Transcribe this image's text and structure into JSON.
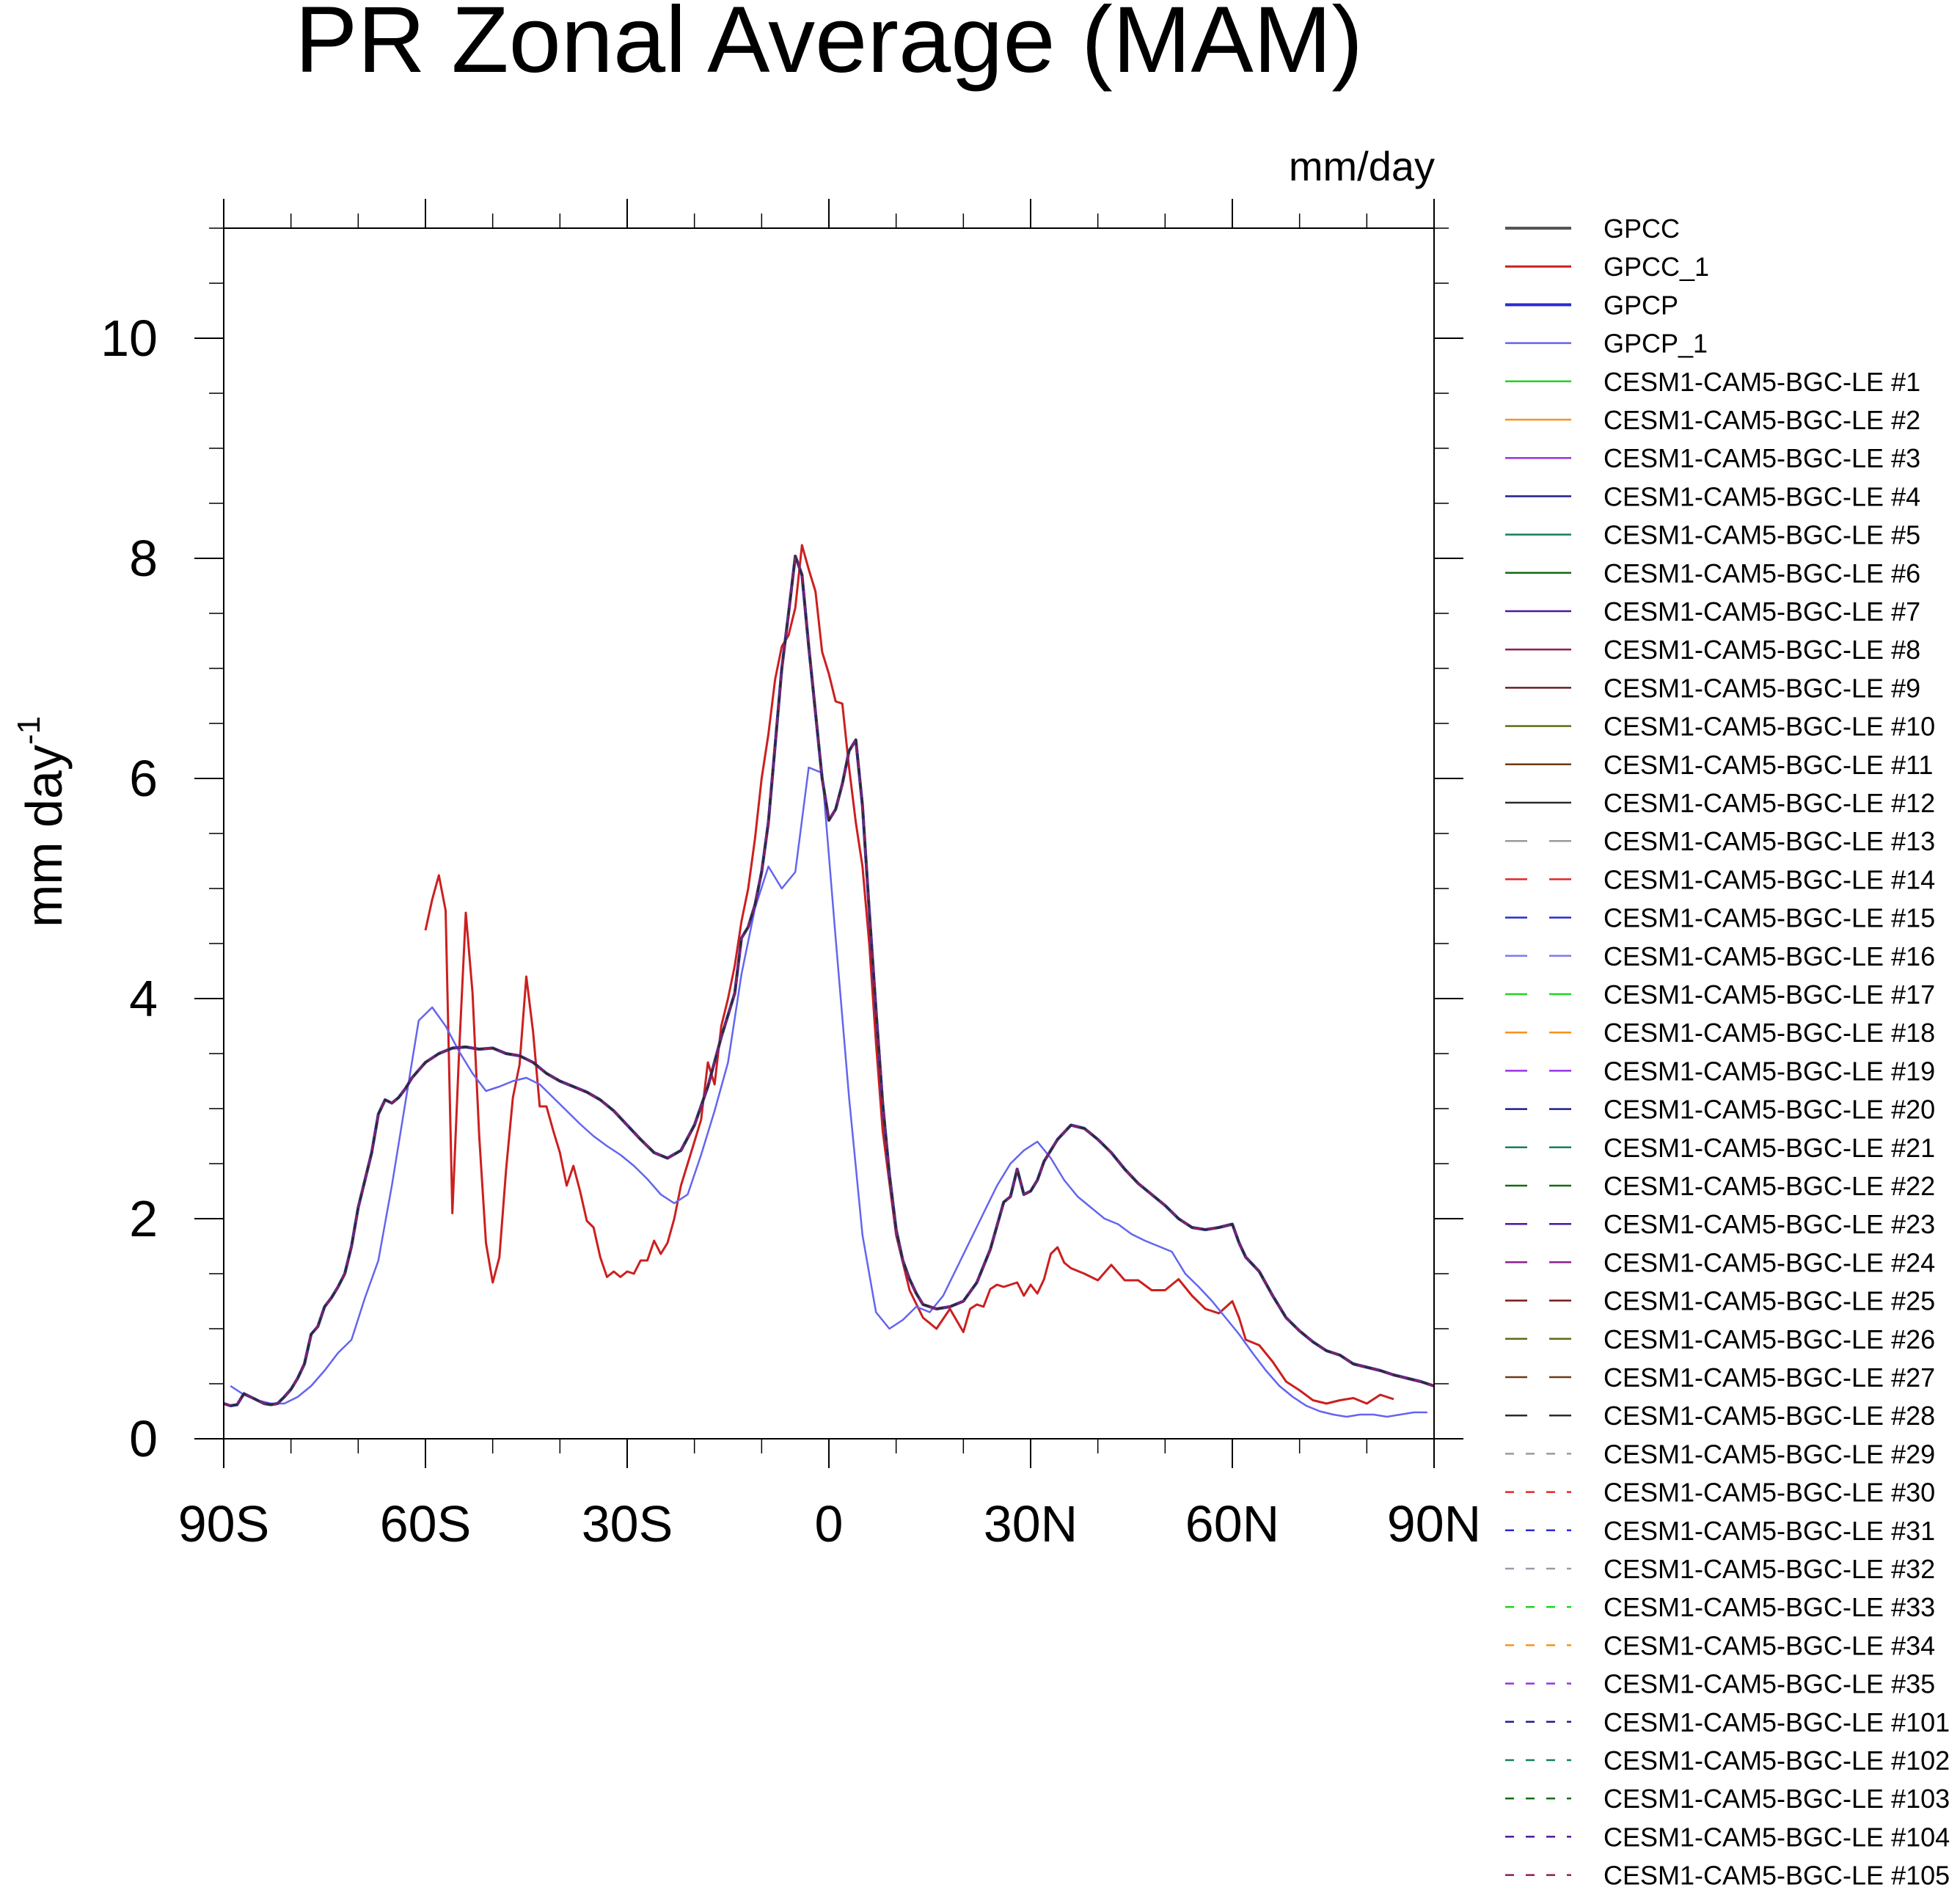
{
  "chart_data": {
    "type": "line",
    "title": "PR Zonal Average (MAM)",
    "units": "mm/day",
    "ylabel": "mm day",
    "ylabel_superscript": "-1",
    "xlabel": "",
    "xlim": [
      -90,
      90
    ],
    "ylim": [
      0,
      11
    ],
    "x_ticks": [
      {
        "value": -90,
        "label": "90S"
      },
      {
        "value": -60,
        "label": "60S"
      },
      {
        "value": -30,
        "label": "30S"
      },
      {
        "value": 0,
        "label": "0"
      },
      {
        "value": 30,
        "label": "30N"
      },
      {
        "value": 60,
        "label": "60N"
      },
      {
        "value": 90,
        "label": "90N"
      }
    ],
    "y_ticks": [
      {
        "value": 0,
        "label": "0"
      },
      {
        "value": 2,
        "label": "2"
      },
      {
        "value": 4,
        "label": "4"
      },
      {
        "value": 6,
        "label": "6"
      },
      {
        "value": 8,
        "label": "8"
      },
      {
        "value": 10,
        "label": "10"
      }
    ],
    "grid": false,
    "legend_position": "right",
    "series": [
      {
        "name": "GPCC",
        "color": "#555555",
        "dash": "solid",
        "width": 4,
        "role": "model"
      },
      {
        "name": "GPCC_1",
        "color": "#cc1f1f",
        "dash": "solid",
        "width": 3,
        "x": [
          -60,
          -59,
          -58,
          -57,
          -56,
          -55,
          -54,
          -53,
          -52,
          -51,
          -50,
          -49,
          -48,
          -47,
          -46,
          -45,
          -44,
          -43,
          -42,
          -41,
          -40,
          -39,
          -38,
          -37,
          -36,
          -35,
          -34,
          -33,
          -32,
          -31,
          -30,
          -29,
          -28,
          -27,
          -26,
          -25,
          -24,
          -23,
          -22,
          -21,
          -20,
          -19,
          -18,
          -17,
          -16,
          -15,
          -14,
          -13,
          -12,
          -11,
          -10,
          -9,
          -8,
          -7,
          -6,
          -5,
          -4,
          -3,
          -2,
          -1,
          0,
          1,
          2,
          3,
          4,
          5,
          6,
          7,
          8,
          10,
          12,
          14,
          16,
          18,
          20,
          21,
          22,
          23,
          24,
          25,
          26,
          27,
          28,
          29,
          30,
          31,
          32,
          33,
          34,
          35,
          36,
          38,
          40,
          42,
          44,
          46,
          48,
          50,
          52,
          54,
          56,
          58,
          60,
          61,
          62,
          64,
          66,
          68,
          70,
          72,
          74,
          76,
          78,
          80,
          82,
          84
        ],
        "values": [
          4.62,
          4.9,
          5.12,
          4.8,
          2.05,
          3.5,
          4.78,
          4.05,
          2.75,
          1.78,
          1.42,
          1.65,
          2.45,
          3.1,
          3.4,
          4.2,
          3.7,
          3.02,
          3.02,
          2.8,
          2.6,
          2.3,
          2.48,
          2.25,
          1.98,
          1.92,
          1.65,
          1.47,
          1.52,
          1.47,
          1.52,
          1.5,
          1.62,
          1.62,
          1.8,
          1.68,
          1.78,
          2.0,
          2.3,
          2.5,
          2.7,
          2.9,
          3.42,
          3.22,
          3.75,
          4.0,
          4.3,
          4.7,
          5.0,
          5.45,
          6.0,
          6.4,
          6.9,
          7.2,
          7.3,
          7.55,
          8.12,
          7.9,
          7.7,
          7.15,
          6.95,
          6.7,
          6.68,
          6.1,
          5.6,
          5.2,
          4.5,
          3.6,
          2.8,
          1.85,
          1.35,
          1.1,
          1.0,
          1.18,
          0.97,
          1.18,
          1.22,
          1.2,
          1.36,
          1.4,
          1.38,
          1.4,
          1.42,
          1.3,
          1.4,
          1.32,
          1.45,
          1.68,
          1.74,
          1.6,
          1.55,
          1.5,
          1.44,
          1.58,
          1.44,
          1.44,
          1.35,
          1.35,
          1.45,
          1.3,
          1.18,
          1.14,
          1.25,
          1.1,
          0.9,
          0.85,
          0.7,
          0.52,
          0.44,
          0.35,
          0.32,
          0.35,
          0.37,
          0.32,
          0.4,
          0.36
        ]
      },
      {
        "name": "GPCP",
        "color": "#2a2ad6",
        "dash": "solid",
        "width": 4,
        "role": "model"
      },
      {
        "name": "GPCP_1",
        "color": "#6464f0",
        "dash": "solid",
        "width": 2.5,
        "x": [
          -89,
          -87,
          -85,
          -83,
          -81,
          -79,
          -77,
          -75,
          -73,
          -71,
          -69,
          -67,
          -65,
          -63,
          -61,
          -59,
          -57,
          -55,
          -53,
          -51,
          -49,
          -47,
          -45,
          -43,
          -41,
          -39,
          -37,
          -35,
          -33,
          -31,
          -29,
          -27,
          -25,
          -23,
          -21,
          -19,
          -17,
          -15,
          -13,
          -11,
          -9,
          -7,
          -5,
          -3,
          -1,
          1,
          3,
          5,
          7,
          9,
          11,
          13,
          15,
          17,
          19,
          21,
          23,
          25,
          27,
          29,
          31,
          33,
          35,
          37,
          39,
          41,
          43,
          45,
          47,
          49,
          51,
          53,
          55,
          57,
          59,
          61,
          63,
          65,
          67,
          69,
          71,
          73,
          75,
          77,
          79,
          81,
          83,
          85,
          87,
          89
        ],
        "values": [
          0.48,
          0.4,
          0.35,
          0.32,
          0.32,
          0.38,
          0.48,
          0.62,
          0.78,
          0.9,
          1.28,
          1.62,
          2.3,
          3.05,
          3.8,
          3.92,
          3.75,
          3.52,
          3.32,
          3.16,
          3.2,
          3.25,
          3.28,
          3.22,
          3.1,
          2.98,
          2.86,
          2.75,
          2.66,
          2.58,
          2.48,
          2.36,
          2.22,
          2.14,
          2.22,
          2.58,
          2.98,
          3.42,
          4.22,
          4.82,
          5.2,
          5.0,
          5.15,
          6.1,
          6.05,
          4.55,
          3.1,
          1.85,
          1.15,
          1.0,
          1.08,
          1.2,
          1.15,
          1.3,
          1.55,
          1.8,
          2.05,
          2.3,
          2.5,
          2.62,
          2.7,
          2.55,
          2.35,
          2.2,
          2.1,
          2.0,
          1.95,
          1.86,
          1.8,
          1.75,
          1.7,
          1.5,
          1.38,
          1.25,
          1.1,
          0.95,
          0.78,
          0.62,
          0.48,
          0.38,
          0.3,
          0.25,
          0.22,
          0.2,
          0.22,
          0.22,
          0.2,
          0.22,
          0.24,
          0.24
        ]
      },
      {
        "name": "CESM1-CAM5-BGC-LE #1",
        "color": "#22d422",
        "dash": "solid",
        "width": 2.5,
        "role": "model"
      },
      {
        "name": "CESM1-CAM5-BGC-LE #2",
        "color": "#f7931e",
        "dash": "solid",
        "width": 2.5,
        "role": "model"
      },
      {
        "name": "CESM1-CAM5-BGC-LE #3",
        "color": "#9932e6",
        "dash": "solid",
        "width": 2.5,
        "role": "model"
      },
      {
        "name": "CESM1-CAM5-BGC-LE #4",
        "color": "#1f1f8c",
        "dash": "solid",
        "width": 2.5,
        "role": "model"
      },
      {
        "name": "CESM1-CAM5-BGC-LE #5",
        "color": "#12805a",
        "dash": "solid",
        "width": 2.5,
        "role": "model"
      },
      {
        "name": "CESM1-CAM5-BGC-LE #6",
        "color": "#136b13",
        "dash": "solid",
        "width": 2.5,
        "role": "model"
      },
      {
        "name": "CESM1-CAM5-BGC-LE #7",
        "color": "#4b16a0",
        "dash": "solid",
        "width": 2.5,
        "role": "model"
      },
      {
        "name": "CESM1-CAM5-BGC-LE #8",
        "color": "#8c1f56",
        "dash": "solid",
        "width": 2.5,
        "role": "model"
      },
      {
        "name": "CESM1-CAM5-BGC-LE #9",
        "color": "#6b1f1f",
        "dash": "solid",
        "width": 2.5,
        "role": "model"
      },
      {
        "name": "CESM1-CAM5-BGC-LE #10",
        "color": "#5e6b16",
        "dash": "solid",
        "width": 2.5,
        "role": "model"
      },
      {
        "name": "CESM1-CAM5-BGC-LE #11",
        "color": "#6b3a16",
        "dash": "solid",
        "width": 2.5,
        "role": "model"
      },
      {
        "name": "CESM1-CAM5-BGC-LE #12",
        "color": "#2b2b2b",
        "dash": "solid",
        "width": 2.5,
        "role": "model"
      },
      {
        "name": "CESM1-CAM5-BGC-LE #13",
        "color": "#9a9a9a",
        "dash": "long",
        "width": 2.5,
        "role": "model"
      },
      {
        "name": "CESM1-CAM5-BGC-LE #14",
        "color": "#e02828",
        "dash": "long",
        "width": 2.5,
        "role": "model"
      },
      {
        "name": "CESM1-CAM5-BGC-LE #15",
        "color": "#2a2ad6",
        "dash": "long",
        "width": 2.5,
        "role": "model"
      },
      {
        "name": "CESM1-CAM5-BGC-LE #16",
        "color": "#7a7af5",
        "dash": "long",
        "width": 2.5,
        "role": "model"
      },
      {
        "name": "CESM1-CAM5-BGC-LE #17",
        "color": "#22d422",
        "dash": "long",
        "width": 2.5,
        "role": "model"
      },
      {
        "name": "CESM1-CAM5-BGC-LE #18",
        "color": "#f7931e",
        "dash": "long",
        "width": 2.5,
        "role": "model"
      },
      {
        "name": "CESM1-CAM5-BGC-LE #19",
        "color": "#9932e6",
        "dash": "long",
        "width": 2.5,
        "role": "model"
      },
      {
        "name": "CESM1-CAM5-BGC-LE #20",
        "color": "#1f1f8c",
        "dash": "long",
        "width": 2.5,
        "role": "model"
      },
      {
        "name": "CESM1-CAM5-BGC-LE #21",
        "color": "#12805a",
        "dash": "long",
        "width": 2.5,
        "role": "model"
      },
      {
        "name": "CESM1-CAM5-BGC-LE #22",
        "color": "#136b13",
        "dash": "long",
        "width": 2.5,
        "role": "model"
      },
      {
        "name": "CESM1-CAM5-BGC-LE #23",
        "color": "#4b16a0",
        "dash": "long",
        "width": 2.5,
        "role": "model"
      },
      {
        "name": "CESM1-CAM5-BGC-LE #24",
        "color": "#8c1f8c",
        "dash": "long",
        "width": 2.5,
        "role": "model"
      },
      {
        "name": "CESM1-CAM5-BGC-LE #25",
        "color": "#7a1a1a",
        "dash": "long",
        "width": 2.5,
        "role": "model"
      },
      {
        "name": "CESM1-CAM5-BGC-LE #26",
        "color": "#5e6b16",
        "dash": "long",
        "width": 2.5,
        "role": "model"
      },
      {
        "name": "CESM1-CAM5-BGC-LE #27",
        "color": "#6b3a16",
        "dash": "long",
        "width": 2.5,
        "role": "model"
      },
      {
        "name": "CESM1-CAM5-BGC-LE #28",
        "color": "#2b2b2b",
        "dash": "long",
        "width": 2.5,
        "role": "model"
      },
      {
        "name": "CESM1-CAM5-BGC-LE #29",
        "color": "#9a9a9a",
        "dash": "short",
        "width": 2.5,
        "role": "model"
      },
      {
        "name": "CESM1-CAM5-BGC-LE #30",
        "color": "#e02828",
        "dash": "short",
        "width": 2.5,
        "role": "model"
      },
      {
        "name": "CESM1-CAM5-BGC-LE #31",
        "color": "#2a2ad6",
        "dash": "short",
        "width": 2.5,
        "role": "model"
      },
      {
        "name": "CESM1-CAM5-BGC-LE #32",
        "color": "#9a9aaa",
        "dash": "short",
        "width": 2.5,
        "role": "model"
      },
      {
        "name": "CESM1-CAM5-BGC-LE #33",
        "color": "#22d422",
        "dash": "short",
        "width": 2.5,
        "role": "model"
      },
      {
        "name": "CESM1-CAM5-BGC-LE #34",
        "color": "#f7931e",
        "dash": "short",
        "width": 2.5,
        "role": "model"
      },
      {
        "name": "CESM1-CAM5-BGC-LE #35",
        "color": "#9932e6",
        "dash": "short",
        "width": 2.5,
        "role": "model"
      },
      {
        "name": "CESM1-CAM5-BGC-LE #101",
        "color": "#1f1f8c",
        "dash": "short",
        "width": 2.5,
        "role": "model"
      },
      {
        "name": "CESM1-CAM5-BGC-LE #102",
        "color": "#12805a",
        "dash": "short",
        "width": 2.5,
        "role": "model"
      },
      {
        "name": "CESM1-CAM5-BGC-LE #103",
        "color": "#136b13",
        "dash": "short",
        "width": 2.5,
        "role": "model"
      },
      {
        "name": "CESM1-CAM5-BGC-LE #104",
        "color": "#4b16a0",
        "dash": "short",
        "width": 2.5,
        "role": "model"
      },
      {
        "name": "CESM1-CAM5-BGC-LE #105",
        "color": "#8c1f56",
        "dash": "short",
        "width": 2.5,
        "role": "model"
      }
    ],
    "model_mean": {
      "x": [
        -90,
        -89,
        -88,
        -87,
        -86,
        -85,
        -84,
        -83,
        -82,
        -81,
        -80,
        -79,
        -78,
        -77,
        -76,
        -75,
        -74,
        -73,
        -72,
        -71,
        -70,
        -69,
        -68,
        -67,
        -66,
        -65,
        -64,
        -63,
        -62,
        -61,
        -60,
        -58,
        -56,
        -54,
        -52,
        -50,
        -48,
        -46,
        -44,
        -42,
        -40,
        -38,
        -36,
        -34,
        -32,
        -30,
        -28,
        -26,
        -24,
        -22,
        -20,
        -18,
        -16,
        -14,
        -13,
        -12,
        -11,
        -10,
        -9,
        -8,
        -7,
        -6,
        -5,
        -4,
        -3,
        -2,
        -1,
        0,
        1,
        2,
        3,
        4,
        5,
        6,
        7,
        8,
        9,
        10,
        11,
        12,
        13,
        14,
        15,
        16,
        18,
        20,
        22,
        24,
        26,
        27,
        28,
        29,
        30,
        31,
        32,
        34,
        36,
        38,
        40,
        42,
        44,
        46,
        48,
        50,
        52,
        54,
        56,
        58,
        60,
        61,
        62,
        64,
        66,
        68,
        70,
        72,
        74,
        76,
        78,
        80,
        82,
        84,
        86,
        88,
        90
      ],
      "values": [
        0.32,
        0.3,
        0.31,
        0.41,
        0.38,
        0.35,
        0.32,
        0.31,
        0.32,
        0.38,
        0.45,
        0.55,
        0.68,
        0.95,
        1.02,
        1.2,
        1.28,
        1.38,
        1.5,
        1.75,
        2.1,
        2.35,
        2.6,
        2.95,
        3.08,
        3.05,
        3.1,
        3.18,
        3.28,
        3.35,
        3.42,
        3.5,
        3.55,
        3.56,
        3.54,
        3.55,
        3.5,
        3.48,
        3.42,
        3.32,
        3.25,
        3.2,
        3.15,
        3.08,
        2.98,
        2.85,
        2.72,
        2.6,
        2.55,
        2.62,
        2.85,
        3.2,
        3.65,
        4.05,
        4.55,
        4.65,
        4.85,
        5.15,
        5.6,
        6.3,
        7.0,
        7.5,
        8.02,
        7.85,
        7.2,
        6.6,
        6.0,
        5.62,
        5.72,
        5.95,
        6.25,
        6.35,
        5.75,
        4.8,
        3.9,
        3.05,
        2.4,
        1.9,
        1.62,
        1.45,
        1.32,
        1.22,
        1.2,
        1.18,
        1.2,
        1.25,
        1.42,
        1.72,
        2.15,
        2.2,
        2.45,
        2.22,
        2.25,
        2.35,
        2.52,
        2.72,
        2.85,
        2.82,
        2.72,
        2.6,
        2.45,
        2.32,
        2.22,
        2.12,
        2.0,
        1.92,
        1.9,
        1.92,
        1.95,
        1.78,
        1.65,
        1.52,
        1.3,
        1.1,
        0.98,
        0.88,
        0.8,
        0.76,
        0.68,
        0.65,
        0.62,
        0.58,
        0.55,
        0.52,
        0.48
      ]
    }
  }
}
